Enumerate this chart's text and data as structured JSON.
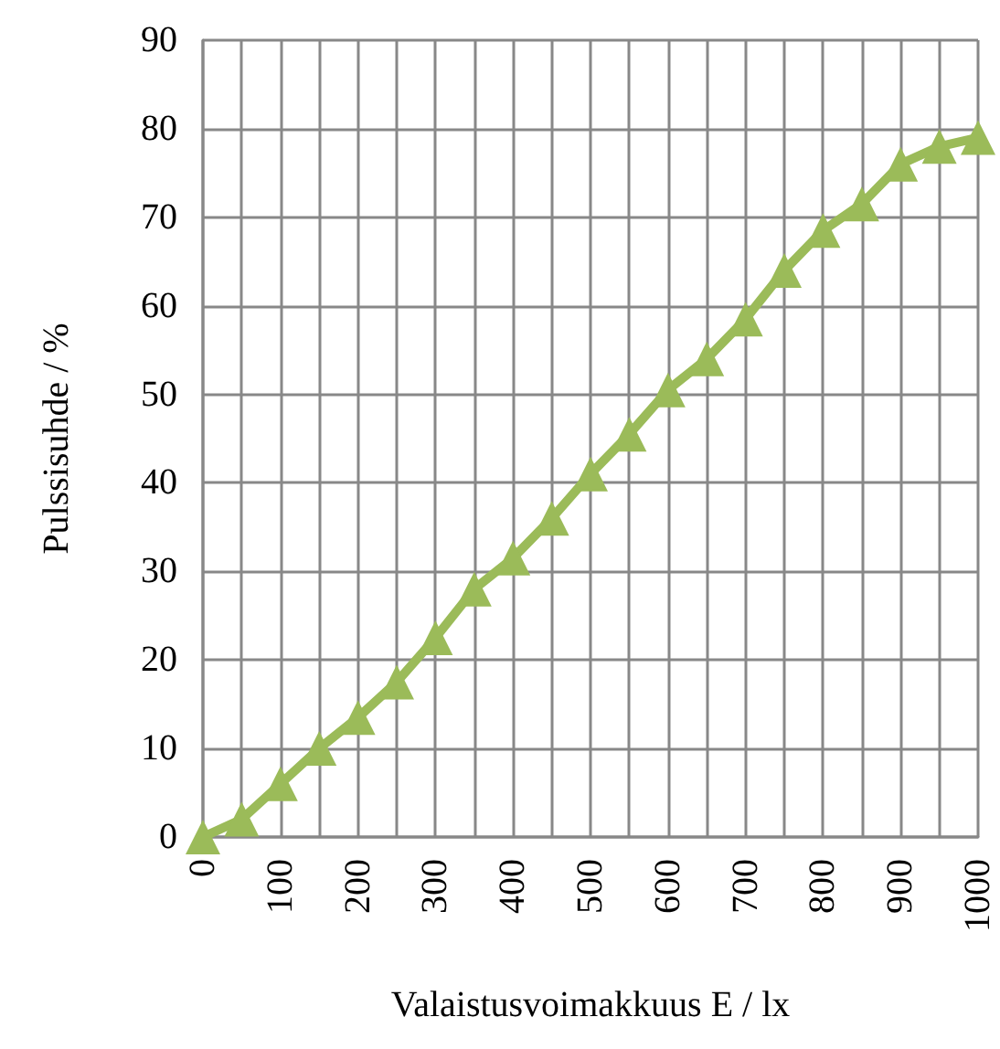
{
  "chart_data": {
    "type": "line",
    "xlabel": "Valaistusvoimakkuus E / lx",
    "ylabel": "Pulssisuhde / %",
    "x": [
      0,
      50,
      100,
      150,
      200,
      250,
      300,
      350,
      400,
      450,
      500,
      550,
      600,
      650,
      700,
      750,
      800,
      850,
      900,
      950,
      1000
    ],
    "series": [
      {
        "color": "#9bbb59",
        "values": [
          0,
          2,
          6,
          10,
          13.5,
          17.5,
          22.5,
          28,
          31.5,
          36,
          41,
          45.5,
          50.5,
          54,
          58.5,
          64,
          68.5,
          71.5,
          76,
          78,
          79
        ]
      }
    ],
    "xlim": [
      0,
      1000
    ],
    "xticks": [
      0,
      {
        "value": 50,
        "label": null
      },
      100,
      {
        "value": 150,
        "label": null
      },
      200,
      {
        "value": 250,
        "label": null
      },
      300,
      {
        "value": 350,
        "label": null
      },
      400,
      {
        "value": 450,
        "label": null
      },
      500,
      {
        "value": 550,
        "label": null
      },
      600,
      {
        "value": 650,
        "label": null
      },
      700,
      {
        "value": 750,
        "label": null
      },
      800,
      {
        "value": 850,
        "label": null
      },
      900,
      {
        "value": 950,
        "label": null
      },
      1000
    ],
    "ylim": [
      0,
      90
    ],
    "yticks": [
      0,
      10,
      20,
      30,
      40,
      50,
      60,
      70,
      80,
      90
    ],
    "grid": true,
    "marker": "triangle",
    "line_style": "solid"
  }
}
